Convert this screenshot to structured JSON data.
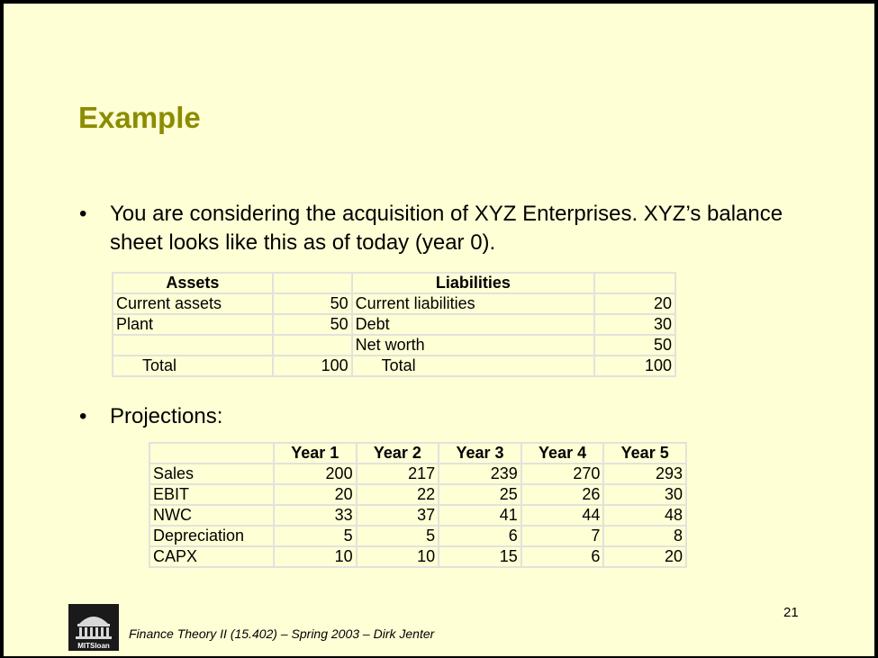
{
  "slide": {
    "title": "Example",
    "bullets": [
      {
        "marker": "•",
        "text": "You are considering the acquisition of XYZ Enterprises. XYZ’s balance sheet looks like this as of today (year 0)."
      },
      {
        "marker": "•",
        "text": "Projections:"
      }
    ],
    "balance_sheet": {
      "headers": [
        "Assets",
        "",
        "Liabilities",
        ""
      ],
      "rows": [
        [
          "Current assets",
          "50",
          "Current liabilities",
          "20"
        ],
        [
          "Plant",
          "50",
          "Debt",
          "30"
        ],
        [
          "",
          "",
          "Net worth",
          "50"
        ],
        [
          "Total",
          "100",
          "Total",
          "100"
        ]
      ]
    },
    "projections": {
      "headers": [
        "",
        "Year 1",
        "Year 2",
        "Year 3",
        "Year 4",
        "Year 5"
      ],
      "rows": [
        [
          "Sales",
          "200",
          "217",
          "239",
          "270",
          "293"
        ],
        [
          "EBIT",
          "20",
          "22",
          "25",
          "26",
          "30"
        ],
        [
          "NWC",
          "33",
          "37",
          "41",
          "44",
          "48"
        ],
        [
          "Depreciation",
          "5",
          "5",
          "6",
          "7",
          "8"
        ],
        [
          "CAPX",
          "10",
          "10",
          "15",
          "6",
          "20"
        ]
      ]
    },
    "page_number": "21",
    "footer": "Finance Theory II (15.402) – Spring 2003 – Dirk Jenter",
    "logo": {
      "text": "MITSloan",
      "icon": "mit-dome-logo"
    }
  }
}
